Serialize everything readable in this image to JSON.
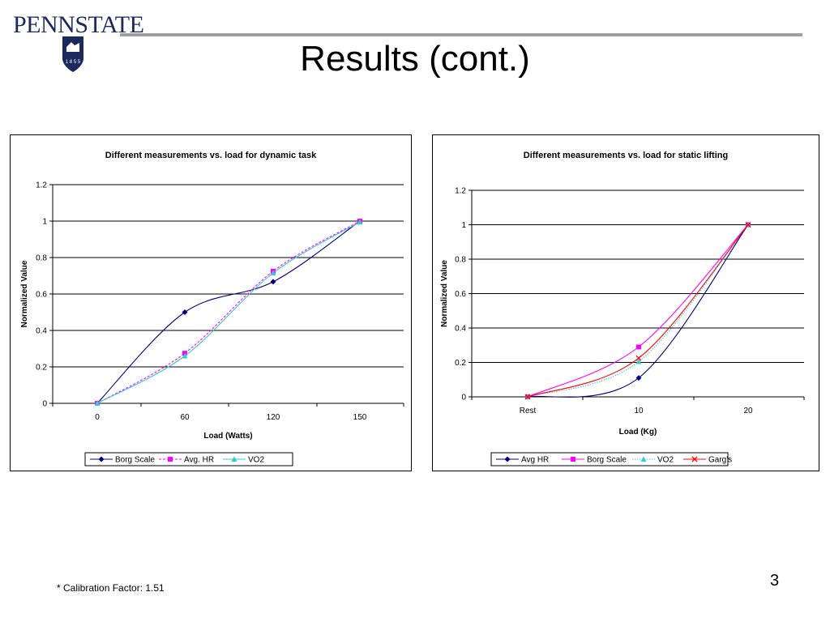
{
  "logo": {
    "wordmark_part1": "PENN",
    "wordmark_part2": "STATE",
    "year": "1 8 5 5"
  },
  "slide": {
    "title": "Results (cont.)",
    "footnote": "* Calibration Factor: 1.51",
    "page_number": "3"
  },
  "colors": {
    "navy": "#000080",
    "magenta": "#ff00ff",
    "cyan": "#33cccc",
    "red": "#ff0000"
  },
  "chart_data": [
    {
      "type": "line",
      "title": "Different measurements vs. load for dynamic task",
      "xlabel": "Load (Watts)",
      "ylabel": "Normalized Value",
      "categories": [
        "0",
        "60",
        "120",
        "150"
      ],
      "ylim": [
        0,
        1.2
      ],
      "yticks": [
        "0",
        "0.2",
        "0.4",
        "0.6",
        "0.8",
        "1",
        "1.2"
      ],
      "grid": true,
      "legend_position": "bottom",
      "series": [
        {
          "name": "Borg Scale",
          "values": [
            0,
            0.5,
            0.667,
            1
          ],
          "color": "#000080",
          "marker": "diamond",
          "dash": "solid"
        },
        {
          "name": "Avg. HR",
          "values": [
            0,
            0.275,
            0.725,
            1
          ],
          "color": "#ff00ff",
          "marker": "square",
          "dash": "dashed"
        },
        {
          "name": "VO2",
          "values": [
            0,
            0.26,
            0.715,
            0.995
          ],
          "color": "#33cccc",
          "marker": "triangle",
          "dash": "solid"
        }
      ]
    },
    {
      "type": "line",
      "title": "Different measurements vs. load for static lifting",
      "xlabel": "Load (Kg)",
      "ylabel": "Normalized Value",
      "categories": [
        "Rest",
        "10",
        "20"
      ],
      "ylim": [
        0,
        1.2
      ],
      "yticks": [
        "0",
        "0.2",
        "0.4",
        "0.6",
        "0.8",
        "1",
        "1.2"
      ],
      "grid": true,
      "legend_position": "bottom",
      "series": [
        {
          "name": "Avg HR",
          "values": [
            0,
            0.11,
            1
          ],
          "color": "#000080",
          "marker": "diamond",
          "dash": "solid"
        },
        {
          "name": "Borg Scale",
          "values": [
            0,
            0.29,
            1
          ],
          "color": "#ff00ff",
          "marker": "square",
          "dash": "solid"
        },
        {
          "name": "VO2",
          "values": [
            0,
            0.205,
            1
          ],
          "color": "#33cccc",
          "marker": "triangle",
          "dash": "dotted"
        },
        {
          "name": "Garg's",
          "values": [
            0,
            0.225,
            1
          ],
          "color": "#ff0000",
          "marker": "x",
          "dash": "solid"
        }
      ]
    }
  ]
}
